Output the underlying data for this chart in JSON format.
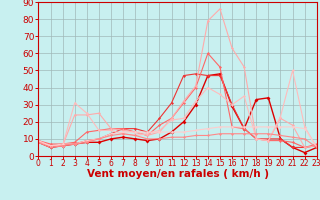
{
  "xlabel": "Vent moyen/en rafales ( km/h )",
  "ylabel": "",
  "xlim": [
    0,
    23
  ],
  "ylim": [
    0,
    90
  ],
  "yticks": [
    0,
    10,
    20,
    30,
    40,
    50,
    60,
    70,
    80,
    90
  ],
  "xticks": [
    0,
    1,
    2,
    3,
    4,
    5,
    6,
    7,
    8,
    9,
    10,
    11,
    12,
    13,
    14,
    15,
    16,
    17,
    18,
    19,
    20,
    21,
    22,
    23
  ],
  "background_color": "#c8f0f0",
  "grid_color": "#a0b8b8",
  "series": [
    {
      "x": [
        0,
        1,
        2,
        3,
        4,
        5,
        6,
        7,
        8,
        9,
        10,
        11,
        12,
        13,
        14,
        15,
        16,
        17,
        18,
        19,
        20,
        21,
        22,
        23
      ],
      "y": [
        8,
        5,
        6,
        7,
        8,
        8,
        10,
        11,
        10,
        9,
        10,
        14,
        20,
        30,
        47,
        48,
        29,
        16,
        33,
        34,
        10,
        5,
        2,
        5
      ],
      "color": "#dd0000",
      "lw": 1.0,
      "ms": 2.0,
      "alpha": 1.0
    },
    {
      "x": [
        0,
        1,
        2,
        3,
        4,
        5,
        6,
        7,
        8,
        9,
        10,
        11,
        12,
        13,
        14,
        15,
        16,
        17,
        18,
        19,
        20,
        21,
        22,
        23
      ],
      "y": [
        9,
        6,
        7,
        7,
        9,
        10,
        13,
        16,
        16,
        14,
        22,
        31,
        47,
        48,
        47,
        47,
        30,
        16,
        10,
        10,
        10,
        5,
        5,
        6
      ],
      "color": "#ee3333",
      "lw": 0.8,
      "ms": 1.5,
      "alpha": 1.0
    },
    {
      "x": [
        0,
        1,
        2,
        3,
        4,
        5,
        6,
        7,
        8,
        9,
        10,
        11,
        12,
        13,
        14,
        15,
        16,
        17,
        18,
        19,
        20,
        21,
        22,
        23
      ],
      "y": [
        9,
        7,
        7,
        8,
        14,
        15,
        16,
        16,
        14,
        12,
        18,
        22,
        31,
        40,
        60,
        52,
        17,
        16,
        10,
        9,
        9,
        8,
        5,
        7
      ],
      "color": "#ff6666",
      "lw": 0.8,
      "ms": 1.5,
      "alpha": 1.0
    },
    {
      "x": [
        0,
        1,
        2,
        3,
        4,
        5,
        6,
        7,
        8,
        9,
        10,
        11,
        12,
        13,
        14,
        15,
        16,
        17,
        18,
        19,
        20,
        21,
        22,
        23
      ],
      "y": [
        8,
        6,
        6,
        24,
        24,
        25,
        16,
        15,
        14,
        12,
        14,
        22,
        32,
        41,
        79,
        86,
        63,
        52,
        10,
        9,
        22,
        18,
        5,
        6
      ],
      "color": "#ffaaaa",
      "lw": 0.8,
      "ms": 1.5,
      "alpha": 1.0
    },
    {
      "x": [
        0,
        1,
        2,
        3,
        4,
        5,
        6,
        7,
        8,
        9,
        10,
        11,
        12,
        13,
        14,
        15,
        16,
        17,
        18,
        19,
        20,
        21,
        22,
        23
      ],
      "y": [
        8,
        6,
        6,
        31,
        25,
        15,
        15,
        13,
        12,
        13,
        15,
        21,
        22,
        32,
        40,
        36,
        30,
        35,
        10,
        9,
        23,
        50,
        17,
        5
      ],
      "color": "#ffbbbb",
      "lw": 0.8,
      "ms": 1.5,
      "alpha": 1.0
    },
    {
      "x": [
        0,
        1,
        2,
        3,
        4,
        5,
        6,
        7,
        8,
        9,
        10,
        11,
        12,
        13,
        14,
        15,
        16,
        17,
        18,
        19,
        20,
        21,
        22,
        23
      ],
      "y": [
        9,
        6,
        7,
        7,
        9,
        10,
        13,
        14,
        14,
        14,
        14,
        14,
        14,
        15,
        16,
        17,
        17,
        17,
        17,
        17,
        17,
        17,
        16,
        5
      ],
      "color": "#ffcccc",
      "lw": 0.8,
      "ms": 1.5,
      "alpha": 1.0
    },
    {
      "x": [
        0,
        1,
        2,
        3,
        4,
        5,
        6,
        7,
        8,
        9,
        10,
        11,
        12,
        13,
        14,
        15,
        16,
        17,
        18,
        19,
        20,
        21,
        22,
        23
      ],
      "y": [
        8,
        5,
        6,
        7,
        8,
        10,
        12,
        13,
        12,
        10,
        10,
        11,
        11,
        12,
        12,
        13,
        13,
        13,
        13,
        13,
        12,
        11,
        10,
        5
      ],
      "color": "#ff8888",
      "lw": 0.8,
      "ms": 1.5,
      "alpha": 1.0
    }
  ],
  "axis_label_color": "#cc0000",
  "tick_color": "#cc0000",
  "xlabel_fontsize": 7.5,
  "ytick_fontsize": 6.5,
  "xtick_fontsize": 5.5,
  "spine_color": "#cc0000"
}
